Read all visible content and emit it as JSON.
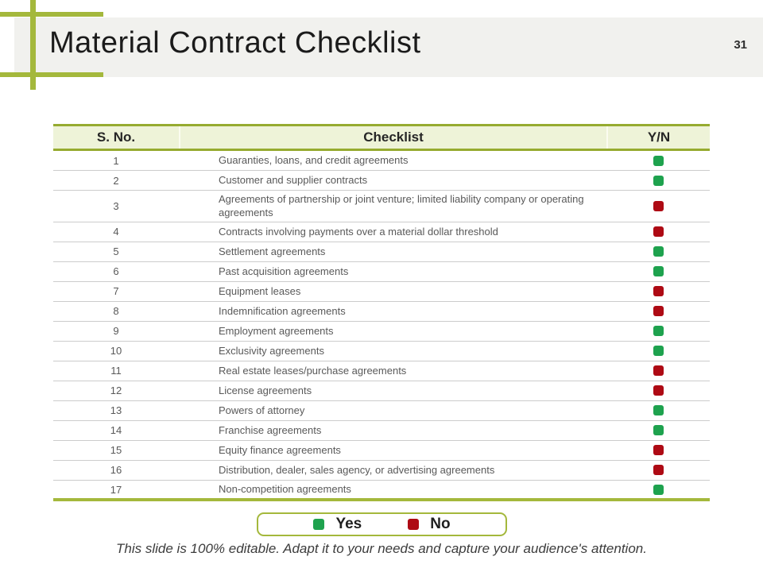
{
  "slide": {
    "title": "Material Contract Checklist",
    "page_number": "31",
    "footer": "This slide is 100% editable. Adapt it to your needs and capture your audience's attention."
  },
  "table": {
    "columns": [
      "S. No.",
      "Checklist",
      "Y/N"
    ],
    "rows": [
      {
        "no": "1",
        "item": "Guaranties, loans, and credit agreements",
        "yn": "yes"
      },
      {
        "no": "2",
        "item": "Customer and supplier contracts",
        "yn": "yes"
      },
      {
        "no": "3",
        "item": "Agreements of partnership or joint venture; limited liability company or operating agreements",
        "yn": "no"
      },
      {
        "no": "4",
        "item": "Contracts involving payments over a material dollar threshold",
        "yn": "no"
      },
      {
        "no": "5",
        "item": "Settlement agreements",
        "yn": "yes"
      },
      {
        "no": "6",
        "item": "Past acquisition agreements",
        "yn": "yes"
      },
      {
        "no": "7",
        "item": "Equipment leases",
        "yn": "no"
      },
      {
        "no": "8",
        "item": "Indemnification agreements",
        "yn": "no"
      },
      {
        "no": "9",
        "item": "Employment agreements",
        "yn": "yes"
      },
      {
        "no": "10",
        "item": "Exclusivity agreements",
        "yn": "yes"
      },
      {
        "no": "11",
        "item": "Real estate leases/purchase agreements",
        "yn": "no"
      },
      {
        "no": "12",
        "item": "License agreements",
        "yn": "no"
      },
      {
        "no": "13",
        "item": "Powers of attorney",
        "yn": "yes"
      },
      {
        "no": "14",
        "item": "Franchise agreements",
        "yn": "yes"
      },
      {
        "no": "15",
        "item": "Equity finance agreements",
        "yn": "no"
      },
      {
        "no": "16",
        "item": "Distribution, dealer, sales agency, or advertising agreements",
        "yn": "no"
      },
      {
        "no": "17",
        "item": "Non-competition agreements",
        "yn": "yes"
      }
    ]
  },
  "legend": {
    "yes_label": "Yes",
    "no_label": "No"
  },
  "colors": {
    "yes": "#1ea24e",
    "no": "#ae0a14",
    "accent_olive": "#a4b83c",
    "header_row_bg": "#eef3d8",
    "title_band_bg": "#f1f1ee"
  }
}
